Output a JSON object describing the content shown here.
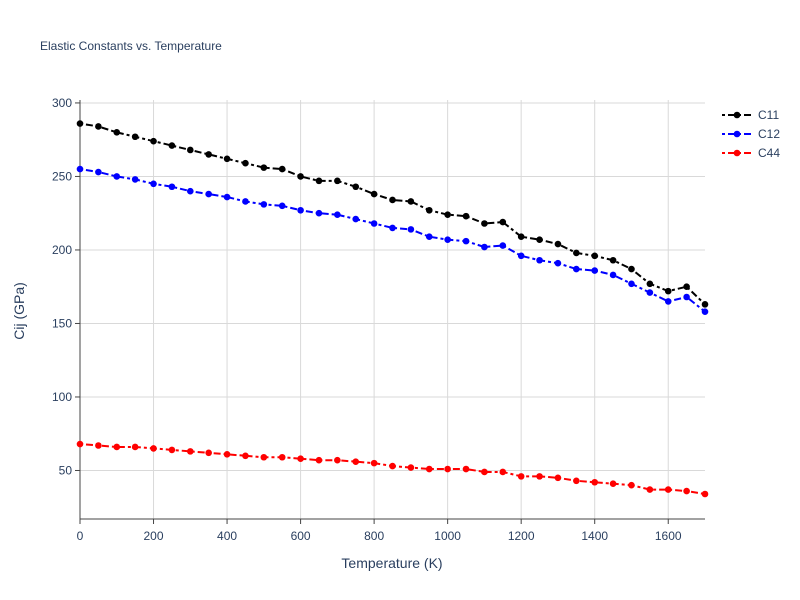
{
  "chart_data": {
    "type": "line",
    "title": "Elastic Constants vs. Temperature",
    "xlabel": "Temperature (K)",
    "ylabel": "Cij (GPa)",
    "xlim": [
      0,
      1700
    ],
    "ylim": [
      17,
      302
    ],
    "xticks": [
      0,
      200,
      400,
      600,
      800,
      1000,
      1200,
      1400,
      1600
    ],
    "yticks": [
      50,
      100,
      150,
      200,
      250,
      300
    ],
    "grid": true,
    "legend_position": "top-right",
    "x": [
      0,
      50,
      100,
      150,
      200,
      250,
      300,
      350,
      400,
      450,
      500,
      550,
      600,
      650,
      700,
      750,
      800,
      850,
      900,
      950,
      1000,
      1050,
      1100,
      1150,
      1200,
      1250,
      1300,
      1350,
      1400,
      1450,
      1500,
      1550,
      1600,
      1650,
      1700
    ],
    "series": [
      {
        "name": "C11",
        "color": "#000000",
        "values": [
          286,
          284,
          280,
          277,
          274,
          271,
          268,
          265,
          262,
          259,
          256,
          255,
          250,
          247,
          247,
          243,
          238,
          234,
          233,
          227,
          224,
          223,
          218,
          219,
          209,
          207,
          204,
          198,
          196,
          193,
          187,
          177,
          172,
          175,
          163
        ]
      },
      {
        "name": "C12",
        "color": "#0000ff",
        "values": [
          255,
          253,
          250,
          248,
          245,
          243,
          240,
          238,
          236,
          233,
          231,
          230,
          227,
          225,
          224,
          221,
          218,
          215,
          214,
          209,
          207,
          206,
          202,
          203,
          196,
          193,
          191,
          187,
          186,
          183,
          177,
          171,
          165,
          168,
          158
        ]
      },
      {
        "name": "C44",
        "color": "#ff0000",
        "values": [
          68,
          67,
          66,
          66,
          65,
          64,
          63,
          62,
          61,
          60,
          59,
          59,
          58,
          57,
          57,
          56,
          55,
          53,
          52,
          51,
          51,
          51,
          49,
          49,
          46,
          46,
          45,
          43,
          42,
          41,
          40,
          37,
          37,
          36,
          34
        ]
      }
    ]
  }
}
